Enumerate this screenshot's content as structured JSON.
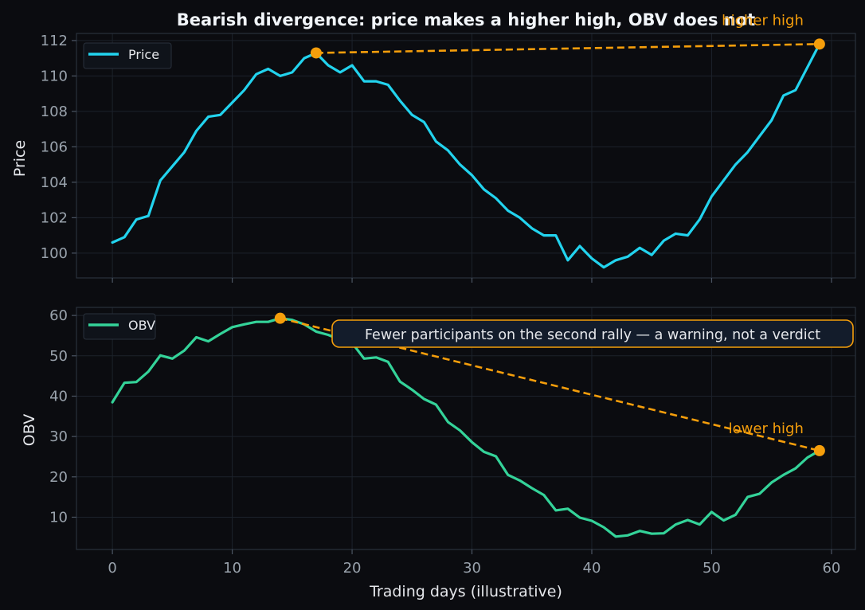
{
  "figure": {
    "title": "Bearish divergence: price makes a higher high, OBV does not",
    "xlabel": "Trading days (illustrative)"
  },
  "colors": {
    "background": "#0b0c10",
    "price": "#22d3ee",
    "obv": "#34d399",
    "annotation": "#f59e0b",
    "text": "#e5e7eb",
    "tick": "#9aa3ad"
  },
  "chart_data": [
    {
      "type": "line",
      "ylabel": "Price",
      "legend": "top-left",
      "legend_entries": [
        "Price"
      ],
      "grid": true,
      "xlim": [
        -3,
        62
      ],
      "ylim": [
        98.6,
        112.4
      ],
      "x_ticks": [
        0,
        10,
        20,
        30,
        40,
        50,
        60
      ],
      "y_ticks": [
        100,
        102,
        104,
        106,
        108,
        110,
        112
      ],
      "series": [
        {
          "name": "Price",
          "x": [
            0,
            1,
            2,
            3,
            4,
            5,
            6,
            7,
            8,
            9,
            10,
            11,
            12,
            13,
            14,
            15,
            16,
            17,
            18,
            19,
            20,
            21,
            22,
            23,
            24,
            25,
            26,
            27,
            28,
            29,
            30,
            31,
            32,
            33,
            34,
            35,
            36,
            37,
            38,
            39,
            40,
            41,
            42,
            43,
            44,
            45,
            46,
            47,
            48,
            49,
            50,
            51,
            52,
            53,
            54,
            55,
            56,
            57,
            58,
            59
          ],
          "values": [
            100.6,
            100.9,
            101.9,
            102.1,
            104.1,
            104.9,
            105.7,
            106.9,
            107.7,
            107.8,
            108.5,
            109.2,
            110.1,
            110.4,
            110.0,
            110.2,
            111.0,
            111.3,
            110.6,
            110.2,
            110.6,
            109.7,
            109.7,
            109.5,
            108.6,
            107.8,
            107.4,
            106.3,
            105.8,
            105.0,
            104.4,
            103.6,
            103.1,
            102.4,
            102.0,
            101.4,
            101.0,
            101.0,
            99.6,
            100.4,
            99.7,
            99.2,
            99.6,
            99.8,
            100.3,
            99.9,
            100.7,
            101.1,
            101.0,
            101.9,
            103.2,
            104.1,
            105.0,
            105.7,
            106.6,
            107.5,
            108.9,
            109.2,
            110.5,
            111.8
          ]
        }
      ],
      "annotation": {
        "text": "higher high",
        "points": [
          [
            17,
            111.3
          ],
          [
            59,
            111.8
          ]
        ]
      }
    },
    {
      "type": "line",
      "ylabel": "OBV",
      "legend": "top-left",
      "legend_entries": [
        "OBV"
      ],
      "grid": true,
      "xlim": [
        -3,
        62
      ],
      "ylim": [
        2,
        62
      ],
      "x_ticks": [
        0,
        10,
        20,
        30,
        40,
        50,
        60
      ],
      "y_ticks": [
        10,
        20,
        30,
        40,
        50,
        60
      ],
      "series": [
        {
          "name": "OBV",
          "x": [
            0,
            1,
            2,
            3,
            4,
            5,
            6,
            7,
            8,
            9,
            10,
            11,
            12,
            13,
            14,
            15,
            16,
            17,
            18,
            19,
            20,
            21,
            22,
            23,
            24,
            25,
            26,
            27,
            28,
            29,
            30,
            31,
            32,
            33,
            34,
            35,
            36,
            37,
            38,
            39,
            40,
            41,
            42,
            43,
            44,
            45,
            46,
            47,
            48,
            49,
            50,
            51,
            52,
            53,
            54,
            55,
            56,
            57,
            58,
            59
          ],
          "values": [
            38.5,
            43.3,
            43.5,
            46.1,
            50.1,
            49.3,
            51.3,
            54.6,
            53.6,
            55.4,
            57.1,
            57.8,
            58.4,
            58.4,
            59.3,
            58.9,
            57.8,
            56.0,
            55.2,
            54.0,
            53.2,
            49.3,
            49.6,
            48.5,
            43.6,
            41.6,
            39.3,
            37.9,
            33.6,
            31.5,
            28.6,
            26.2,
            25.1,
            20.5,
            19.1,
            17.2,
            15.5,
            11.7,
            12.1,
            9.9,
            9.1,
            7.5,
            5.2,
            5.5,
            6.6,
            5.9,
            6.0,
            8.2,
            9.3,
            8.2,
            11.3,
            9.2,
            10.6,
            15.0,
            15.8,
            18.6,
            20.5,
            22.1,
            24.8,
            26.5
          ]
        }
      ],
      "annotation": {
        "text": "lower high",
        "callout": "Fewer participants on the second rally — a warning, not a verdict",
        "points": [
          [
            14,
            59.3
          ],
          [
            59,
            26.5
          ]
        ]
      }
    }
  ]
}
